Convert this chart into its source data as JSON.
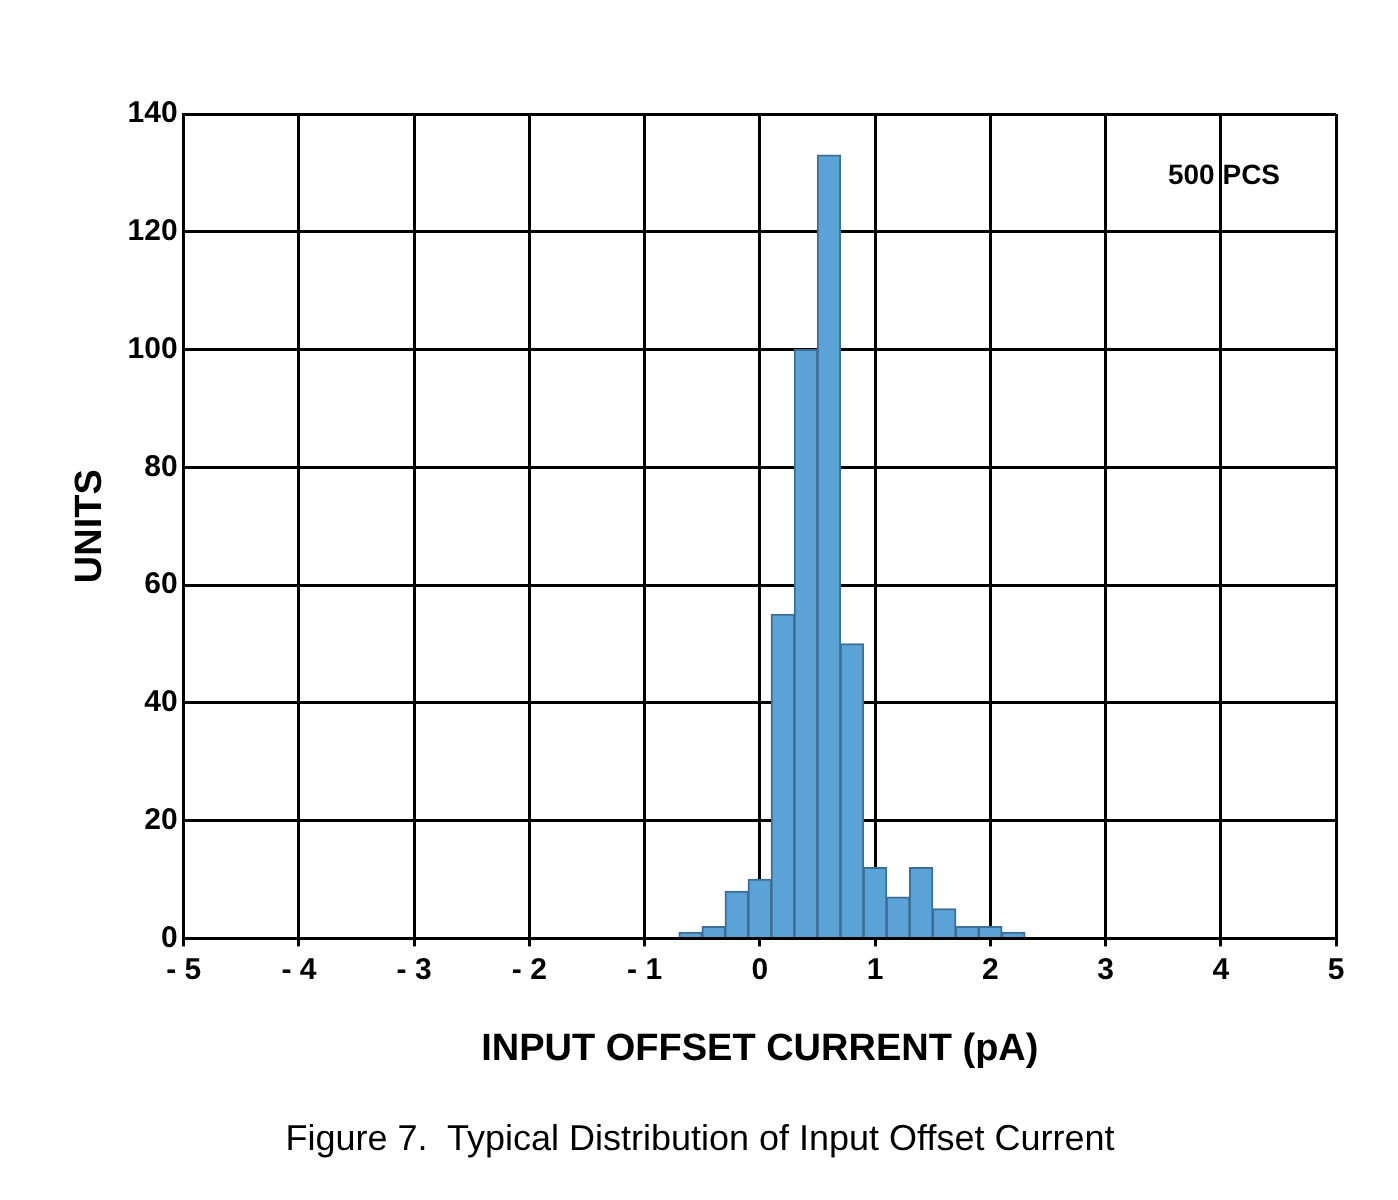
{
  "chart_data": {
    "type": "histogram",
    "xlabel": "INPUT OFFSET CURRENT (pA)",
    "ylabel": "UNITS",
    "bins": [
      -0.7,
      -0.5,
      -0.3,
      -0.1,
      0.1,
      0.3,
      0.5,
      0.7,
      0.9,
      1.1,
      1.3,
      1.5,
      1.7,
      1.9,
      2.1,
      2.3
    ],
    "values": [
      1,
      2,
      8,
      10,
      55,
      100,
      133,
      50,
      12,
      7,
      12,
      5,
      2,
      2,
      1
    ],
    "color": "#5ba3d6",
    "xlim": [
      -5,
      5
    ],
    "xticks": [
      {
        "value": -5,
        "label": "- 5"
      },
      {
        "value": -4,
        "label": "- 4"
      },
      {
        "value": -3,
        "label": "- 3"
      },
      {
        "value": -2,
        "label": "- 2"
      },
      {
        "value": -1,
        "label": "- 1"
      },
      0,
      1,
      2,
      3,
      4,
      5
    ],
    "ylim": [
      0,
      140
    ],
    "yticks": [
      0,
      20,
      40,
      60,
      80,
      100,
      120,
      140
    ],
    "grid": true,
    "legend": false,
    "annotations": [
      "500 PCS",
      "Figure 7.  Typical Distribution of Input Offset Current"
    ]
  }
}
